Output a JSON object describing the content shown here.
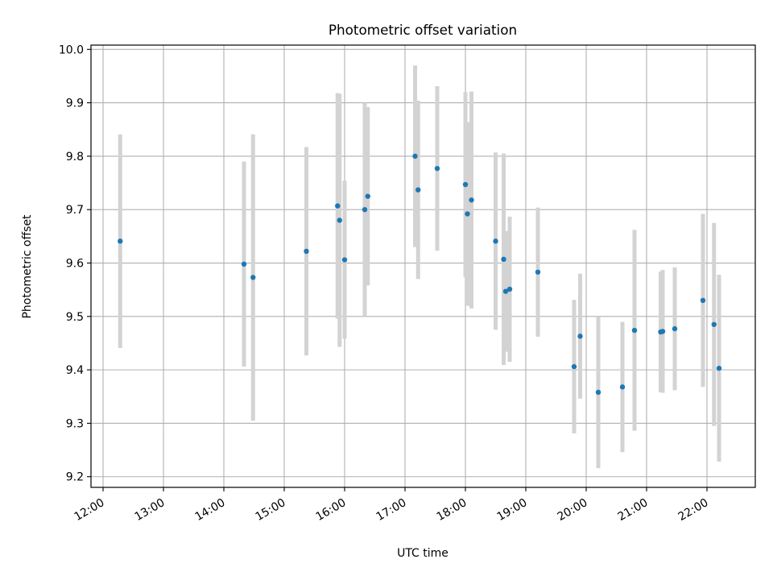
{
  "chart_data": {
    "type": "scatter",
    "title": "Photometric offset variation",
    "xlabel": "UTC time",
    "ylabel": "Photometric offset",
    "x_unit": "hours (UTC)",
    "xlim": [
      "11:48",
      "22:48"
    ],
    "ylim": [
      9.18,
      10.008
    ],
    "x_ticks": [
      "12:00",
      "13:00",
      "14:00",
      "15:00",
      "16:00",
      "17:00",
      "18:00",
      "19:00",
      "20:00",
      "21:00",
      "22:00"
    ],
    "y_ticks": [
      "9.2",
      "9.3",
      "9.4",
      "9.5",
      "9.6",
      "9.7",
      "9.8",
      "9.9",
      "10.0"
    ],
    "grid": true,
    "colors": {
      "points": "#1f77b4",
      "errorbars": "#d3d3d3",
      "grid": "#b0b0b0"
    },
    "series": [
      {
        "points": [
          {
            "x": "12:17",
            "y": 9.641,
            "err": 0.2
          },
          {
            "x": "14:20",
            "y": 9.598,
            "err": 0.192
          },
          {
            "x": "14:29",
            "y": 9.573,
            "err": 0.268
          },
          {
            "x": "15:22",
            "y": 9.622,
            "err": 0.195
          },
          {
            "x": "15:53",
            "y": 9.707,
            "err": 0.211
          },
          {
            "x": "15:55",
            "y": 9.68,
            "err": 0.237
          },
          {
            "x": "16:00",
            "y": 9.606,
            "err": 0.148
          },
          {
            "x": "16:20",
            "y": 9.7,
            "err": 0.2
          },
          {
            "x": "16:23",
            "y": 9.725,
            "err": 0.167
          },
          {
            "x": "17:10",
            "y": 9.8,
            "err": 0.17
          },
          {
            "x": "17:13",
            "y": 9.737,
            "err": 0.167
          },
          {
            "x": "17:32",
            "y": 9.777,
            "err": 0.154
          },
          {
            "x": "18:00",
            "y": 9.747,
            "err": 0.173
          },
          {
            "x": "18:02",
            "y": 9.692,
            "err": 0.172
          },
          {
            "x": "18:06",
            "y": 9.718,
            "err": 0.203
          },
          {
            "x": "18:30",
            "y": 9.641,
            "err": 0.166
          },
          {
            "x": "18:38",
            "y": 9.607,
            "err": 0.198
          },
          {
            "x": "18:40",
            "y": 9.547,
            "err": 0.113
          },
          {
            "x": "18:44",
            "y": 9.551,
            "err": 0.136
          },
          {
            "x": "19:12",
            "y": 9.583,
            "err": 0.121
          },
          {
            "x": "19:48",
            "y": 9.406,
            "err": 0.125
          },
          {
            "x": "19:54",
            "y": 9.463,
            "err": 0.117
          },
          {
            "x": "20:12",
            "y": 9.358,
            "err": 0.142
          },
          {
            "x": "20:36",
            "y": 9.368,
            "err": 0.122
          },
          {
            "x": "20:48",
            "y": 9.474,
            "err": 0.188
          },
          {
            "x": "21:14",
            "y": 9.471,
            "err": 0.113
          },
          {
            "x": "21:16",
            "y": 9.472,
            "err": 0.115
          },
          {
            "x": "21:28",
            "y": 9.477,
            "err": 0.115
          },
          {
            "x": "21:56",
            "y": 9.53,
            "err": 0.162
          },
          {
            "x": "22:07",
            "y": 9.485,
            "err": 0.19
          },
          {
            "x": "22:12",
            "y": 9.403,
            "err": 0.175
          }
        ]
      }
    ]
  }
}
